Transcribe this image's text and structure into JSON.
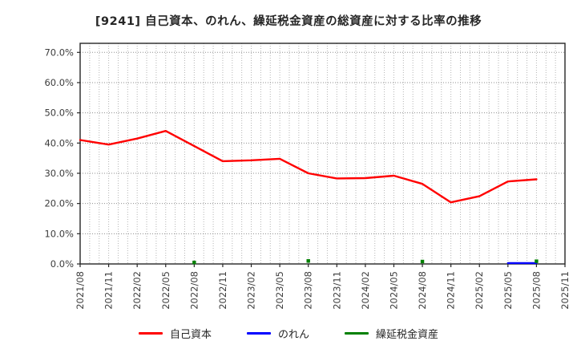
{
  "figure": {
    "title": "[9241]  自己資本、のれん、繰延税金資産の総資産に対する比率の推移"
  },
  "chart_data": {
    "type": "line",
    "title": "[9241]  自己資本、のれん、繰延税金資産の総資産に対する比率の推移",
    "xlabel": "",
    "ylabel": "",
    "x_labels": [
      "2021/08",
      "2021/11",
      "2022/02",
      "2022/05",
      "2022/08",
      "2022/11",
      "2023/02",
      "2023/05",
      "2023/08",
      "2023/11",
      "2024/02",
      "2024/05",
      "2024/08",
      "2024/11",
      "2025/02",
      "2025/05",
      "2025/08",
      "2025/11"
    ],
    "ylim": [
      0,
      73
    ],
    "yticks": [
      0,
      10,
      20,
      30,
      40,
      50,
      60,
      70
    ],
    "ytick_suffix": "%",
    "grid": true,
    "minor_x_divisions": 3,
    "legend_position": "bottom-center",
    "axis_color": "#262626",
    "grid_color_h": "#8f8f8f",
    "grid_color_v": "#b5b5b5",
    "series": [
      {
        "key": "equity",
        "name": "自己資本",
        "color": "#ff0000",
        "style": "line",
        "x": [
          "2021/08",
          "2021/11",
          "2022/02",
          "2022/05",
          "2022/08",
          "2022/11",
          "2023/02",
          "2023/05",
          "2023/08",
          "2023/11",
          "2024/02",
          "2024/05",
          "2024/08",
          "2024/11",
          "2025/02",
          "2025/05",
          "2025/08"
        ],
        "values": [
          41.0,
          39.5,
          41.5,
          44.0,
          39.0,
          34.0,
          34.3,
          34.8,
          30.0,
          28.3,
          28.4,
          29.2,
          26.5,
          20.4,
          22.4,
          27.3,
          28.0
        ]
      },
      {
        "key": "goodwill",
        "name": "のれん",
        "color": "#0000ff",
        "style": "line",
        "x": [
          "2025/05",
          "2025/08"
        ],
        "values": [
          0.3,
          0.3
        ]
      },
      {
        "key": "deferred-tax-assets",
        "name": "繰延税金資産",
        "color": "#008000",
        "style": "points",
        "x": [
          "2022/08",
          "2023/08",
          "2024/08",
          "2025/08"
        ],
        "values": [
          0.5,
          1.0,
          0.8,
          0.9
        ]
      }
    ]
  }
}
